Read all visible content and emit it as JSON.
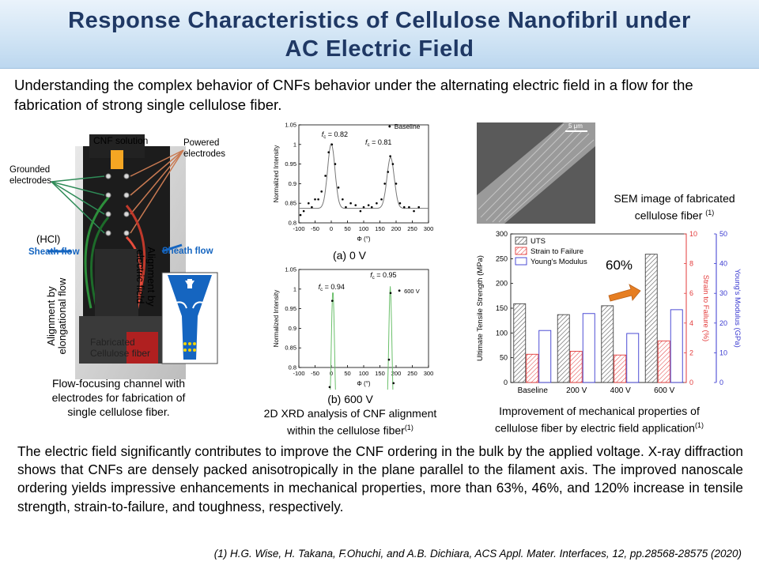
{
  "title": {
    "line1": "Response Characteristics of Cellulose Nanofibril under",
    "line2": "AC Electric Field"
  },
  "intro": "Understanding the complex behavior of CNFs behavior under the alternating electric field in a flow for the fabrication of strong single cellulose fiber.",
  "device": {
    "cnf_solution": "CNF solution",
    "powered": [
      "Powered",
      "electrodes"
    ],
    "grounded": [
      "Grounded",
      "electrodes"
    ],
    "alignment_field": [
      "Alignment by",
      "electric field"
    ],
    "hcl": "(HCl)",
    "sheath_flow": "Sheath flow",
    "alignment_flow": [
      "Alignment by",
      "elongational flow"
    ],
    "fabricated": [
      "Fabricated",
      "Cellulose fiber"
    ],
    "caption": [
      "Flow-focusing channel with",
      "electrodes for fabrication of",
      "single cellulose fiber."
    ]
  },
  "xrd": {
    "top": {
      "fc_left": "f",
      "fc_left_val": "c = 0.82",
      "fc_right_val": "c = 0.81",
      "legend": "Baseline",
      "caption": "(a) 0 V",
      "yticks": [
        "1.05",
        "1",
        "0.95",
        "0.9",
        "0.85",
        "0.8"
      ],
      "xticks": [
        "-100",
        "-50",
        "0",
        "50",
        "100",
        "150",
        "200",
        "250",
        "300"
      ],
      "ylabel": "Normalized Intensity",
      "xlabel": "Φ (°)"
    },
    "bottom": {
      "fc_left_val": "c = 0.94",
      "fc_right_val": "c = 0.95",
      "legend": "600 V",
      "caption": "(b) 600 V",
      "yticks": [
        "1.05",
        "1",
        "0.95",
        "0.9",
        "0.85",
        "0.8"
      ],
      "xticks": [
        "-100",
        "-50",
        "0",
        "50",
        "100",
        "150",
        "200",
        "250",
        "300"
      ],
      "ylabel": "Normalized Intensity",
      "xlabel": "Φ (°)"
    },
    "caption_lines": [
      "2D XRD analysis of CNF alignment",
      "within the cellulose fiber"
    ],
    "caption_sup": "(1)"
  },
  "sem": {
    "scale": "5 μm",
    "caption_lines": [
      "SEM image of fabricated",
      "cellulose fiber"
    ],
    "caption_sup": "(1)"
  },
  "chart_data": {
    "type": "bar",
    "categories": [
      "Baseline",
      "200 V",
      "400 V",
      "600 V"
    ],
    "series": [
      {
        "name": "UTS",
        "axis": "left",
        "values": [
          159,
          137,
          155,
          259
        ],
        "color": "#444444",
        "pattern": "hatch"
      },
      {
        "name": "Strain to Failure",
        "axis": "right1",
        "values": [
          1.9,
          2.1,
          1.85,
          2.8
        ],
        "color": "#e33b3b",
        "pattern": "hatch"
      },
      {
        "name": "Young's Modulus",
        "axis": "right2",
        "values": [
          17.5,
          23.2,
          16.5,
          24.5
        ],
        "color": "#3a3ad0",
        "pattern": "none"
      }
    ],
    "left_axis": {
      "label": "Ultimate Tensile Strength (MPa)",
      "range": [
        0,
        300
      ],
      "ticks": [
        "0",
        "50",
        "100",
        "150",
        "200",
        "250",
        "300"
      ]
    },
    "right1_axis": {
      "label": "Strain to Failure (%)",
      "range": [
        0,
        10
      ],
      "ticks": [
        "0",
        "2",
        "4",
        "6",
        "8",
        "10"
      ]
    },
    "right2_axis": {
      "label": "Young's Modulus (GPa)",
      "range": [
        0,
        50
      ],
      "ticks": [
        "0",
        "10",
        "20",
        "30",
        "40",
        "50"
      ]
    },
    "annotation": "60%",
    "legend_placement": "top-left"
  },
  "mech_caption": {
    "lines": [
      "Improvement  of mechanical properties of",
      "cellulose fiber by electric field application"
    ],
    "sup": "(1)"
  },
  "body": "The electric field significantly contributes to improve the CNF ordering in the bulk by the applied voltage. X-ray diffraction shows that CNFs are densely packed anisotropically in the plane parallel to the filament axis. The improved nanoscale ordering yields impressive enhancements in mechanical properties, more than 63%, 46%, and 120% increase in tensile strength, strain-to-failure, and toughness, respectively.",
  "reference": "(1) H.G. Wise, H. Takana, F.Ohuchi, and A.B. Dichiara, ACS Appl. Mater. Interfaces, 12, pp.28568-28575 (2020)"
}
